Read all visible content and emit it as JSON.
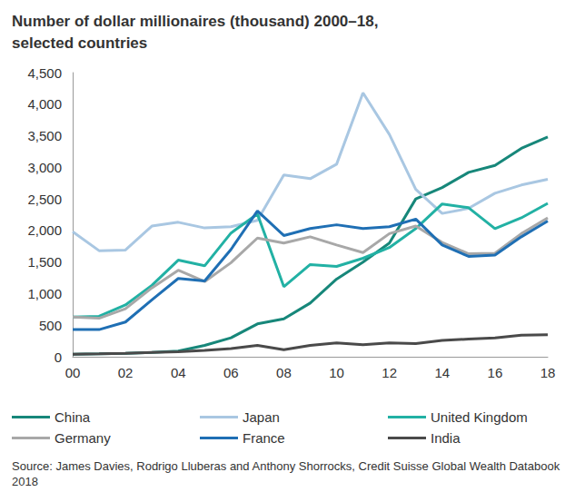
{
  "chart_data": {
    "type": "line",
    "title": "Number of dollar millionaires (thousand) 2000–18,\nselected countries",
    "source": "Source: James Davies, Rodrigo Lluberas and Anthony Shorrocks, Credit Suisse Global Wealth Databook 2018",
    "categories": [
      "00",
      null,
      "02",
      null,
      "04",
      null,
      "06",
      null,
      "08",
      null,
      "10",
      null,
      "12",
      null,
      "14",
      null,
      "16",
      null,
      "18"
    ],
    "series": [
      {
        "name": "China",
        "color": "#17877a",
        "values": [
          40,
          45,
          55,
          70,
          90,
          180,
          300,
          520,
          600,
          850,
          1230,
          1500,
          1800,
          2500,
          2680,
          2920,
          3030,
          3300,
          3480
        ]
      },
      {
        "name": "Japan",
        "color": "#a9c7e2",
        "values": [
          1980,
          1680,
          1690,
          2070,
          2130,
          2040,
          2060,
          2160,
          2880,
          2820,
          3050,
          4180,
          3520,
          2650,
          2270,
          2350,
          2590,
          2720,
          2810
        ]
      },
      {
        "name": "United Kingdom",
        "color": "#22b1a4",
        "values": [
          630,
          640,
          820,
          1130,
          1530,
          1440,
          1960,
          2260,
          1110,
          1460,
          1430,
          1560,
          1730,
          2030,
          2420,
          2360,
          2030,
          2200,
          2430
        ]
      },
      {
        "name": "Germany",
        "color": "#a8a8a8",
        "values": [
          630,
          610,
          760,
          1090,
          1370,
          1190,
          1490,
          1880,
          1800,
          1900,
          1770,
          1650,
          1950,
          2070,
          1810,
          1630,
          1640,
          1950,
          2200
        ]
      },
      {
        "name": "France",
        "color": "#1f6fb4",
        "values": [
          430,
          430,
          550,
          900,
          1240,
          1200,
          1700,
          2310,
          1920,
          2030,
          2090,
          2030,
          2060,
          2180,
          1770,
          1590,
          1610,
          1900,
          2150
        ]
      },
      {
        "name": "India",
        "color": "#4a4a4a",
        "values": [
          40,
          45,
          55,
          70,
          80,
          100,
          130,
          180,
          110,
          180,
          220,
          190,
          220,
          210,
          260,
          280,
          300,
          340,
          350
        ]
      }
    ],
    "ylim": [
      0,
      4500
    ],
    "yticks": [
      0,
      500,
      {
        "value": 1000,
        "label": "1,000"
      },
      {
        "value": 1500,
        "label": "1,500"
      },
      {
        "value": 2000,
        "label": "2,000"
      },
      {
        "value": 2500,
        "label": "2,500"
      },
      {
        "value": 3000,
        "label": "3,000"
      },
      {
        "value": 3500,
        "label": "3,500"
      },
      {
        "value": 4000,
        "label": "4,000"
      },
      {
        "value": 4500,
        "label": "4,500"
      }
    ],
    "grid": false,
    "legend": "bottom"
  }
}
